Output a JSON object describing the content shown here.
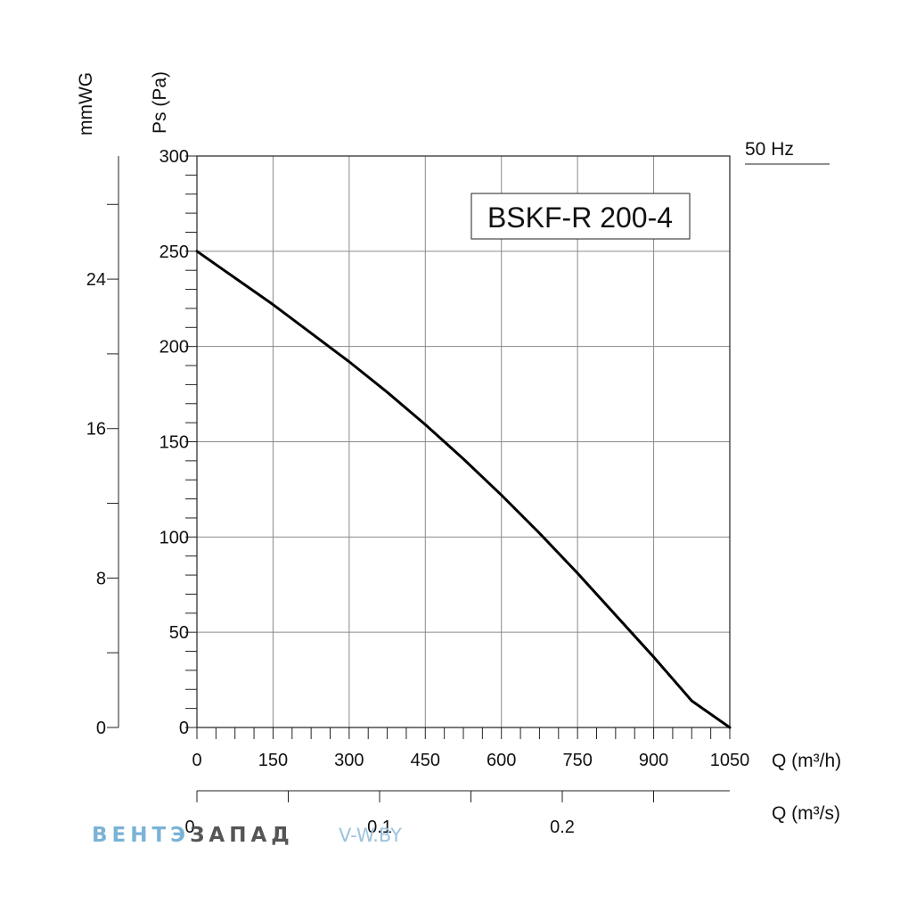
{
  "chart_data": {
    "type": "line",
    "model_label": "BSKF-R 200-4",
    "frequency_label": "50 Hz",
    "x": {
      "label": "Q (m³/h)",
      "range": [
        0,
        1050
      ],
      "ticks": [
        0,
        150,
        300,
        450,
        600,
        750,
        900,
        1050
      ],
      "tick_labels": [
        "0",
        "150",
        "300",
        "450",
        "600",
        "750",
        "900",
        "1050"
      ]
    },
    "x2": {
      "label": "Q (m³/s)",
      "range": [
        0,
        0.2917
      ],
      "ticks": [
        0,
        0.1,
        0.2
      ],
      "tick_labels": [
        "0",
        "0.1",
        "0.2"
      ]
    },
    "y": {
      "label": "Ps (Pa)",
      "range": [
        0,
        300
      ],
      "ticks": [
        0,
        50,
        100,
        150,
        200,
        250,
        300
      ],
      "tick_labels": [
        "0",
        "50",
        "100",
        "150",
        "200",
        "250",
        "300"
      ]
    },
    "y2": {
      "label": "mmWG",
      "range": [
        0,
        30.59
      ],
      "ticks": [
        0,
        8,
        16,
        24
      ],
      "tick_labels": [
        "0",
        "8",
        "16",
        "24"
      ]
    },
    "grid": true,
    "series": [
      {
        "x": [
          0,
          75,
          150,
          225,
          300,
          375,
          450,
          525,
          600,
          675,
          750,
          825,
          900,
          975,
          1050
        ],
        "y": [
          250,
          236,
          222,
          207,
          192,
          176,
          159,
          141,
          122,
          102,
          81,
          59,
          37,
          14,
          0
        ]
      }
    ]
  },
  "watermark": {
    "brand_part1": "ВЕНТЭ",
    "brand_part2": "ЗАПАД",
    "site": "V-W.BY",
    "color1": "#7ab3d6",
    "color2": "#555555",
    "color3": "#9cc3dd"
  }
}
